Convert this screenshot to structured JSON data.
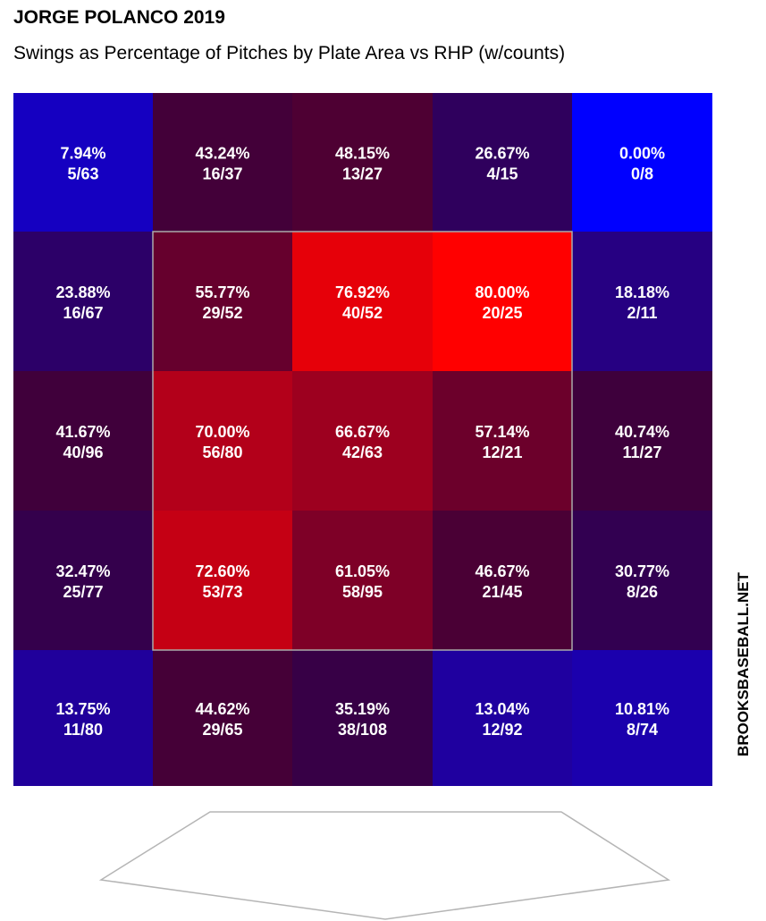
{
  "title": "JORGE POLANCO 2019",
  "subtitle": "Swings as Percentage of Pitches by Plate Area vs RHP (w/counts)",
  "watermark": "BROOKSBASEBALL.NET",
  "chart_data": {
    "type": "heatmap",
    "rows": 5,
    "cols": 5,
    "strike_zone": {
      "rows": [
        1,
        3
      ],
      "cols": [
        1,
        3
      ]
    },
    "color_scale": {
      "low": "#0000ff",
      "high": "#ff0000",
      "min_pct": 0,
      "max_pct": 80
    },
    "cells": [
      [
        {
          "pct": "7.94%",
          "count": "5/63",
          "value": 7.94
        },
        {
          "pct": "43.24%",
          "count": "16/37",
          "value": 43.24
        },
        {
          "pct": "48.15%",
          "count": "13/27",
          "value": 48.15
        },
        {
          "pct": "26.67%",
          "count": "4/15",
          "value": 26.67
        },
        {
          "pct": "0.00%",
          "count": "0/8",
          "value": 0.0
        }
      ],
      [
        {
          "pct": "23.88%",
          "count": "16/67",
          "value": 23.88
        },
        {
          "pct": "55.77%",
          "count": "29/52",
          "value": 55.77
        },
        {
          "pct": "76.92%",
          "count": "40/52",
          "value": 76.92
        },
        {
          "pct": "80.00%",
          "count": "20/25",
          "value": 80.0
        },
        {
          "pct": "18.18%",
          "count": "2/11",
          "value": 18.18
        }
      ],
      [
        {
          "pct": "41.67%",
          "count": "40/96",
          "value": 41.67
        },
        {
          "pct": "70.00%",
          "count": "56/80",
          "value": 70.0
        },
        {
          "pct": "66.67%",
          "count": "42/63",
          "value": 66.67
        },
        {
          "pct": "57.14%",
          "count": "12/21",
          "value": 57.14
        },
        {
          "pct": "40.74%",
          "count": "11/27",
          "value": 40.74
        }
      ],
      [
        {
          "pct": "32.47%",
          "count": "25/77",
          "value": 32.47
        },
        {
          "pct": "72.60%",
          "count": "53/73",
          "value": 72.6
        },
        {
          "pct": "61.05%",
          "count": "58/95",
          "value": 61.05
        },
        {
          "pct": "46.67%",
          "count": "21/45",
          "value": 46.67
        },
        {
          "pct": "30.77%",
          "count": "8/26",
          "value": 30.77
        }
      ],
      [
        {
          "pct": "13.75%",
          "count": "11/80",
          "value": 13.75
        },
        {
          "pct": "44.62%",
          "count": "29/65",
          "value": 44.62
        },
        {
          "pct": "35.19%",
          "count": "38/108",
          "value": 35.19
        },
        {
          "pct": "13.04%",
          "count": "12/92",
          "value": 13.04
        },
        {
          "pct": "10.81%",
          "count": "8/74",
          "value": 10.81
        }
      ]
    ]
  }
}
